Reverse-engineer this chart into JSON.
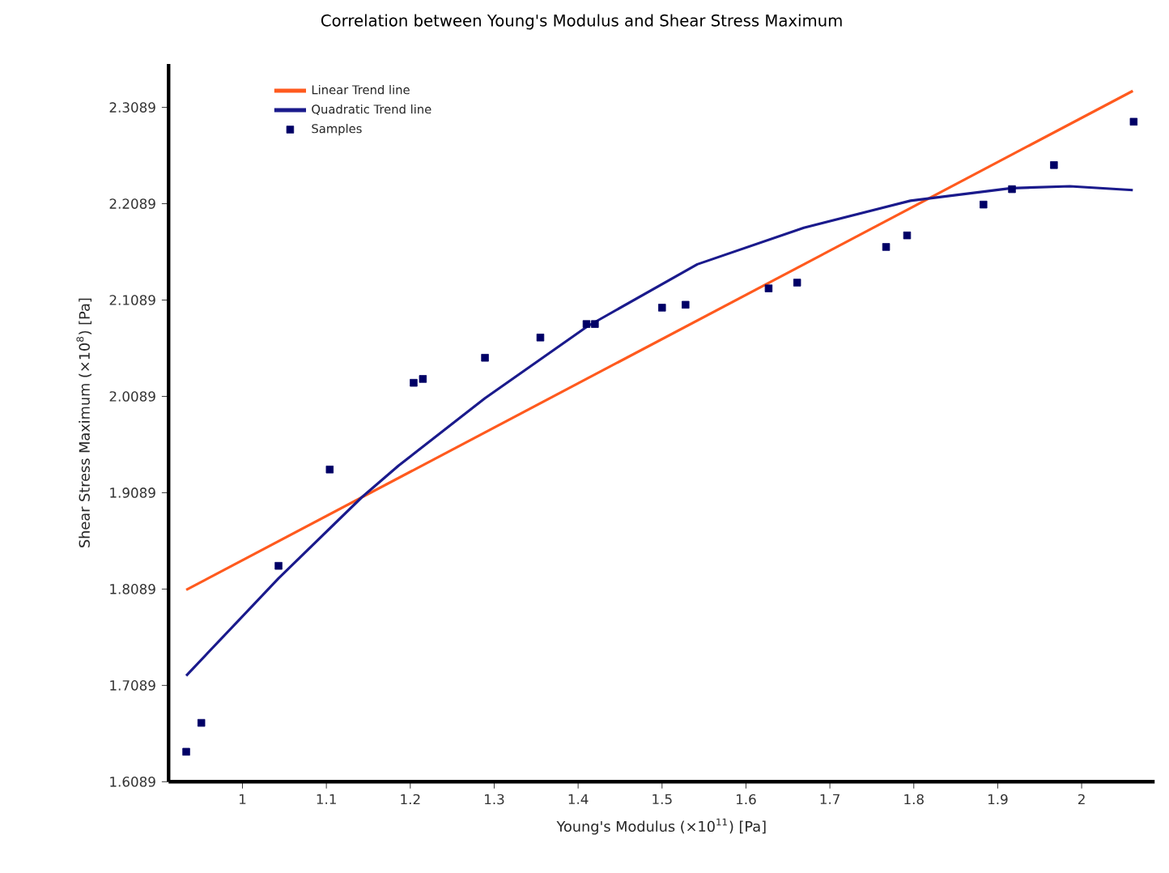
{
  "chart_data": {
    "type": "scatter",
    "title": "Correlation between Young's Modulus and Shear Stress Maximum",
    "xlabel": "Young's Modulus (×10$^{11}$) [Pa]",
    "ylabel": "Shear Stress Maximum (×10$^{8}$) [Pa]",
    "xlim": [
      0.912,
      2.087
    ],
    "ylim": [
      1.6089,
      2.354
    ],
    "xticks": [
      1,
      1.1,
      1.2,
      1.3,
      1.4,
      1.5,
      1.6,
      1.7,
      1.8,
      1.9,
      2
    ],
    "yticks": [
      1.6089,
      1.7089,
      1.8089,
      1.9089,
      2.0089,
      2.1089,
      2.2089,
      2.3089
    ],
    "grid": false,
    "legend": "top left",
    "series": [
      {
        "name": "Linear Trend line",
        "type": "line",
        "marker": "none",
        "color": "#ff5a1e",
        "x": [
          0.933,
          2.061
        ],
        "values": [
          1.808,
          2.326
        ]
      },
      {
        "name": "Quadratic Trend line",
        "type": "line",
        "marker": "none",
        "color": "#1a1a8c",
        "x": [
          0.933,
          1.043,
          1.142,
          1.186,
          1.289,
          1.41,
          1.42,
          1.542,
          1.669,
          1.796,
          1.916,
          1.986,
          2.061
        ],
        "values": [
          1.719,
          1.82,
          1.904,
          1.937,
          2.007,
          2.081,
          2.086,
          2.146,
          2.184,
          2.212,
          2.225,
          2.227,
          2.223
        ]
      },
      {
        "name": "Samples",
        "marker": "square",
        "color": "#000066",
        "x": [
          0.933,
          0.951,
          1.043,
          1.104,
          1.204,
          1.215,
          1.289,
          1.355,
          1.41,
          1.42,
          1.5,
          1.528,
          1.627,
          1.661,
          1.767,
          1.792,
          1.883,
          1.917,
          1.967,
          2.062
        ],
        "values": [
          1.64,
          1.67,
          1.833,
          1.933,
          2.023,
          2.027,
          2.049,
          2.07,
          2.084,
          2.084,
          2.101,
          2.104,
          2.121,
          2.127,
          2.164,
          2.176,
          2.208,
          2.224,
          2.249,
          2.294
        ]
      }
    ]
  }
}
